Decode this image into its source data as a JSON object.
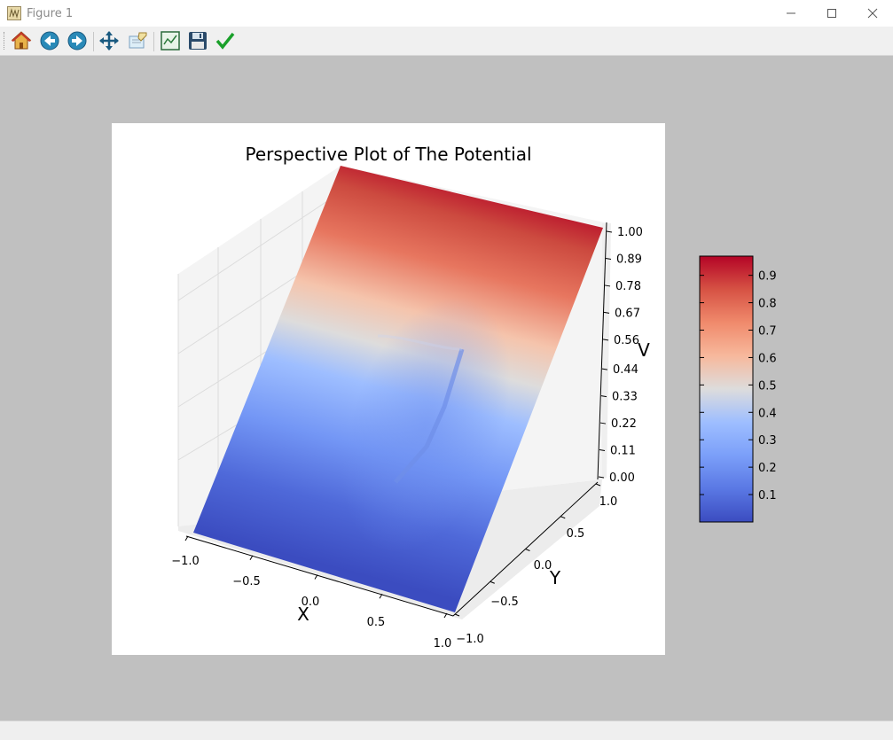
{
  "window": {
    "title": "Figure 1",
    "minimize": "—",
    "maximize": "☐",
    "close": "✕"
  },
  "toolbar": {
    "buttons": [
      {
        "name": "home-button",
        "icon": "home-icon"
      },
      {
        "name": "back-button",
        "icon": "back-arrow-icon"
      },
      {
        "name": "forward-button",
        "icon": "forward-arrow-icon"
      },
      {
        "name": "pan-button",
        "icon": "move-icon"
      },
      {
        "name": "zoom-button",
        "icon": "zoom-rect-icon"
      },
      {
        "name": "subplots-button",
        "icon": "subplots-icon"
      },
      {
        "name": "save-button",
        "icon": "floppy-icon"
      },
      {
        "name": "edit-button",
        "icon": "checkmark-icon"
      }
    ]
  },
  "chart_data": {
    "type": "surface",
    "title": "Perspective Plot of The Potential",
    "xlabel": "X",
    "ylabel": "Y",
    "zlabel": "V",
    "x_ticks": [
      "−1.0",
      "−0.5",
      "0.0",
      "0.5",
      "1.0"
    ],
    "y_ticks": [
      "−1.0",
      "−0.5",
      "0.0",
      "0.5",
      "1.0"
    ],
    "z_ticks": [
      "0.00",
      "0.11",
      "0.22",
      "0.33",
      "0.44",
      "0.56",
      "0.67",
      "0.78",
      "0.89",
      "1.00"
    ],
    "xlim": [
      -1.0,
      1.0
    ],
    "ylim": [
      -1.0,
      1.0
    ],
    "zlim": [
      0.0,
      1.0
    ],
    "colormap": "coolwarm",
    "colorbar": {
      "ticks": [
        "0.1",
        "0.2",
        "0.3",
        "0.4",
        "0.5",
        "0.6",
        "0.7",
        "0.8",
        "0.9"
      ],
      "range": [
        0.0,
        0.97
      ],
      "position": "right"
    },
    "grid": true
  }
}
